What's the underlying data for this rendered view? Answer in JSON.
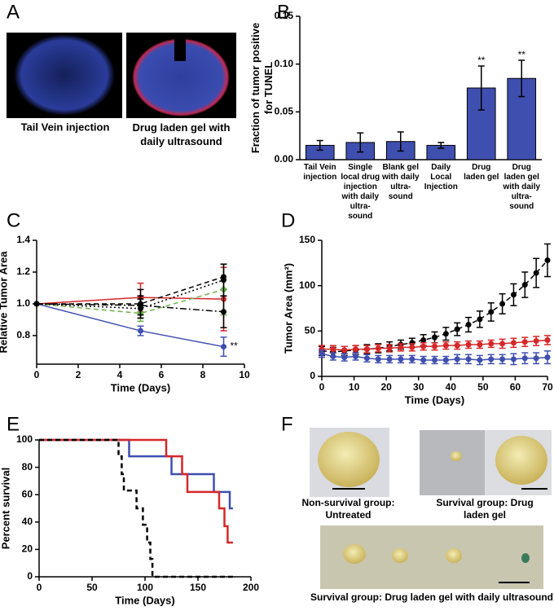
{
  "panel_labels": [
    "A",
    "B",
    "C",
    "D",
    "E",
    "F"
  ],
  "panel_a": {
    "captions": [
      "Tail Vein injection",
      "Drug laden gel with daily ultrasound"
    ]
  },
  "panel_f": {
    "captions": [
      "Non-survival group: Untreated",
      "Survival group: Drug laden gel",
      "Survival group: Drug laden gel with daily ultrasound"
    ]
  },
  "chart_data": [
    {
      "type": "bar",
      "ylabel": "Fraction of tumor positive for TUNEL",
      "categories": [
        "Tail Vein injection",
        "Single local drug injection with daily ultra-sound",
        "Blank gel with daily ultra-sound",
        "Daily Local Injection",
        "Drug laden gel",
        "Drug laden gel with daily ultra-sound"
      ],
      "values": [
        0.015,
        0.018,
        0.019,
        0.015,
        0.075,
        0.085
      ],
      "errors": [
        0.005,
        0.01,
        0.01,
        0.003,
        0.023,
        0.019
      ],
      "value_annotations": [
        null,
        null,
        null,
        null,
        "**",
        "**"
      ],
      "color": "#3f4fb0",
      "ylim": [
        0,
        0.15
      ],
      "yticks": [
        {
          "value": 0,
          "label": "0.00"
        },
        0.05,
        {
          "value": 0.1,
          "label": "0.10"
        },
        0.15
      ]
    },
    {
      "type": "line",
      "xlabel": "Time (Days)",
      "ylabel": "Relative Tumor Area",
      "x": [
        0,
        5,
        9
      ],
      "series": [
        {
          "color": "#3f4fb0",
          "dash": "solid",
          "values": [
            1.0,
            0.83,
            0.73
          ],
          "errors": [
            0,
            0.03,
            0.06
          ]
        },
        {
          "color": "#d62728",
          "dash": "solid",
          "values": [
            1.0,
            1.04,
            1.03
          ],
          "errors": [
            0,
            0.09,
            0.2
          ]
        },
        {
          "color": "#000000",
          "dash": "dashed",
          "values": [
            1.0,
            1.0,
            1.17
          ],
          "errors": [
            0,
            0.09,
            0.08
          ]
        },
        {
          "color": "#6cb24a",
          "dash": "dashed",
          "values": [
            1.0,
            0.94,
            1.09
          ],
          "errors": [
            0,
            0.05,
            0.16
          ]
        },
        {
          "color": "#000000",
          "dash": "dotted",
          "values": [
            1.0,
            0.97,
            1.15
          ],
          "errors": [
            0,
            0.06,
            0.1
          ]
        },
        {
          "color": "#000000",
          "dash": "dashdot",
          "values": [
            1.0,
            0.99,
            0.95
          ],
          "errors": [
            0,
            0.06,
            0.1
          ]
        }
      ],
      "annotation": "**",
      "xlim": [
        0,
        10
      ],
      "xticks": [
        0,
        2,
        4,
        6,
        8,
        10
      ],
      "ylim": [
        0.62,
        1.4
      ],
      "yticks": [
        0.8,
        {
          "value": 1,
          "label": "1.0"
        },
        1.2,
        1.4
      ]
    },
    {
      "type": "line",
      "xlabel": "Time (Days)",
      "ylabel": "Tumor Area (mm²)",
      "x": [
        0,
        3.5,
        7,
        10.5,
        14,
        17.5,
        21,
        24.5,
        28,
        31.5,
        35,
        38.5,
        42,
        45.5,
        49,
        52.5,
        56,
        59.5,
        63,
        66.5,
        70
      ],
      "series": [
        {
          "color": "#000000",
          "dash": "dashed",
          "values": [
            28,
            27,
            28,
            29,
            30,
            31,
            33,
            35,
            37,
            40,
            43,
            47,
            52,
            57,
            63,
            71,
            80,
            90,
            101,
            114,
            128
          ],
          "errors": [
            5,
            5,
            5,
            5,
            5,
            5,
            5,
            5,
            5,
            6,
            6,
            7,
            7,
            8,
            9,
            10,
            11,
            12,
            14,
            16,
            18
          ]
        },
        {
          "color": "#d62728",
          "dash": "solid",
          "values": [
            30,
            30,
            29,
            30,
            30,
            31,
            31,
            32,
            32,
            33,
            33,
            34,
            34,
            35,
            35,
            36,
            36,
            37,
            38,
            39,
            40
          ],
          "errors": [
            4,
            4,
            4,
            4,
            4,
            4,
            4,
            4,
            4,
            4,
            4,
            4,
            4,
            4,
            4,
            4,
            5,
            5,
            5,
            5,
            5
          ]
        },
        {
          "color": "#3f4fb0",
          "dash": "solid",
          "values": [
            25,
            22,
            21,
            22,
            20,
            19,
            19,
            19,
            19,
            18,
            18,
            18,
            19,
            19,
            18,
            19,
            19,
            19,
            20,
            20,
            21
          ],
          "errors": [
            4,
            4,
            4,
            4,
            4,
            4,
            4,
            4,
            4,
            4,
            4,
            4,
            5,
            5,
            5,
            5,
            5,
            6,
            6,
            6,
            7
          ]
        }
      ],
      "xlim": [
        0,
        70
      ],
      "xticks": [
        0,
        10,
        20,
        30,
        40,
        50,
        60,
        70
      ],
      "ylim": [
        0,
        150
      ],
      "yticks": [
        0,
        50,
        100,
        150
      ]
    },
    {
      "type": "step",
      "xlabel": "Time (Days)",
      "ylabel": "Percent survival",
      "series": [
        {
          "color": "#3f4fb0",
          "dash": "solid",
          "x": [
            0,
            85,
            125,
            165,
            180,
            183
          ],
          "values": [
            100,
            88,
            75,
            62,
            50,
            50
          ]
        },
        {
          "color": "#d62728",
          "dash": "solid",
          "x": [
            0,
            120,
            135,
            140,
            170,
            175,
            178,
            183
          ],
          "values": [
            100,
            88,
            75,
            62,
            50,
            37,
            25,
            25
          ]
        },
        {
          "color": "#000000",
          "dash": "dashed",
          "x": [
            0,
            75,
            78,
            80,
            92,
            98,
            102,
            105,
            107,
            183
          ],
          "values": [
            100,
            88,
            75,
            63,
            50,
            38,
            25,
            13,
            0,
            0
          ]
        }
      ],
      "xlim": [
        0,
        200
      ],
      "xticks": [
        0,
        50,
        100,
        150,
        200
      ],
      "ylim": [
        0,
        100
      ],
      "yticks": [
        0,
        20,
        40,
        60,
        80,
        100
      ]
    }
  ]
}
